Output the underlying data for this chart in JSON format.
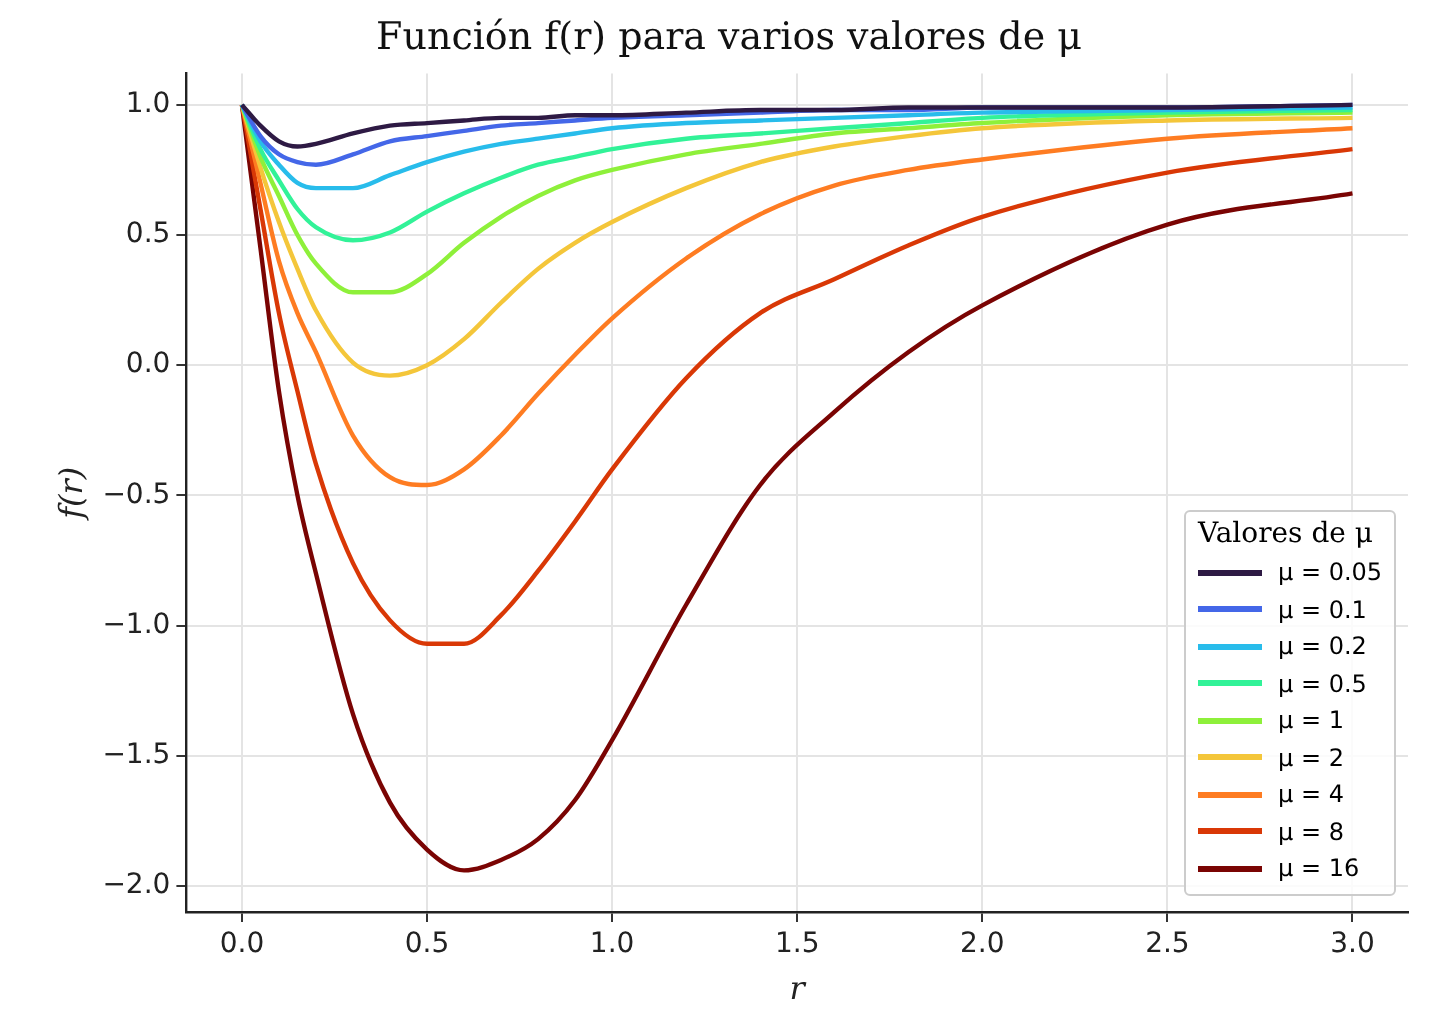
{
  "chart_data": {
    "type": "line",
    "title": "Función f(r) para varios valores de μ",
    "xlabel": "r",
    "ylabel": "f(r)",
    "legend_title": "Valores de μ",
    "x": [
      0,
      0.05,
      0.1,
      0.15,
      0.2,
      0.3,
      0.4,
      0.5,
      0.6,
      0.7,
      0.8,
      0.9,
      1.0,
      1.2,
      1.4,
      1.6,
      1.8,
      2.0,
      2.5,
      3.0
    ],
    "series": [
      {
        "name": "μ = 0.05",
        "color": "#2e1a44",
        "values": [
          1,
          0.92,
          0.86,
          0.84,
          0.85,
          0.89,
          0.92,
          0.93,
          0.94,
          0.95,
          0.95,
          0.96,
          0.96,
          0.97,
          0.98,
          0.98,
          0.99,
          0.99,
          0.99,
          1.0
        ]
      },
      {
        "name": "μ = 0.1",
        "color": "#4467e8",
        "values": [
          1,
          0.88,
          0.81,
          0.78,
          0.77,
          0.81,
          0.86,
          0.88,
          0.9,
          0.92,
          0.93,
          0.94,
          0.95,
          0.96,
          0.97,
          0.98,
          0.98,
          0.99,
          0.99,
          1.0
        ]
      },
      {
        "name": "μ = 0.2",
        "color": "#28bceb",
        "values": [
          1,
          0.86,
          0.77,
          0.7,
          0.68,
          0.68,
          0.73,
          0.78,
          0.82,
          0.85,
          0.87,
          0.89,
          0.91,
          0.93,
          0.94,
          0.95,
          0.96,
          0.97,
          0.98,
          0.99
        ]
      },
      {
        "name": "μ = 0.5",
        "color": "#32f298",
        "values": [
          1,
          0.83,
          0.71,
          0.6,
          0.53,
          0.48,
          0.51,
          0.59,
          0.66,
          0.72,
          0.77,
          0.8,
          0.83,
          0.87,
          0.89,
          0.91,
          0.93,
          0.95,
          0.97,
          0.98
        ]
      },
      {
        "name": "μ = 1",
        "color": "#8ef03a",
        "values": [
          1,
          0.8,
          0.65,
          0.5,
          0.39,
          0.28,
          0.28,
          0.35,
          0.47,
          0.57,
          0.65,
          0.71,
          0.75,
          0.81,
          0.85,
          0.89,
          0.91,
          0.93,
          0.96,
          0.97
        ]
      },
      {
        "name": "μ = 2",
        "color": "#f4c63a",
        "values": [
          1,
          0.76,
          0.55,
          0.37,
          0.21,
          0.01,
          -0.04,
          0.0,
          0.1,
          0.24,
          0.37,
          0.47,
          0.55,
          0.68,
          0.78,
          0.84,
          0.88,
          0.91,
          0.94,
          0.95
        ]
      },
      {
        "name": "μ = 4",
        "color": "#fe7c22",
        "values": [
          1,
          0.7,
          0.4,
          0.2,
          0.05,
          -0.27,
          -0.43,
          -0.46,
          -0.4,
          -0.27,
          -0.11,
          0.04,
          0.18,
          0.41,
          0.58,
          0.69,
          0.75,
          0.79,
          0.87,
          0.91
        ]
      },
      {
        "name": "μ = 8",
        "color": "#d93806",
        "values": [
          1,
          0.6,
          0.2,
          -0.1,
          -0.38,
          -0.76,
          -0.98,
          -1.07,
          -1.07,
          -0.96,
          -0.79,
          -0.6,
          -0.4,
          -0.05,
          0.2,
          0.33,
          0.46,
          0.57,
          0.74,
          0.83
        ]
      },
      {
        "name": "μ = 16",
        "color": "#7a0403",
        "values": [
          1,
          0.45,
          -0.1,
          -0.5,
          -0.8,
          -1.34,
          -1.68,
          -1.86,
          -1.94,
          -1.9,
          -1.82,
          -1.67,
          -1.44,
          -0.92,
          -0.46,
          -0.18,
          0.05,
          0.23,
          0.54,
          0.66
        ]
      }
    ],
    "xlim": [
      -0.15,
      3.15
    ],
    "ylim": [
      -2.1,
      1.12
    ],
    "xticks": [
      {
        "value": 0,
        "label": "0.0"
      },
      {
        "value": 0.5,
        "label": "0.5"
      },
      {
        "value": 1,
        "label": "1.0"
      },
      {
        "value": 1.5,
        "label": "1.5"
      },
      {
        "value": 2,
        "label": "2.0"
      },
      {
        "value": 2.5,
        "label": "2.5"
      },
      {
        "value": 3,
        "label": "3.0"
      }
    ],
    "yticks": [
      {
        "value": -2,
        "label": "−2.0"
      },
      {
        "value": -1.5,
        "label": "−1.5"
      },
      {
        "value": -1,
        "label": "−1.0"
      },
      {
        "value": -0.5,
        "label": "−0.5"
      },
      {
        "value": 0,
        "label": "0.0"
      },
      {
        "value": 0.5,
        "label": "0.5"
      },
      {
        "value": 1,
        "label": "1.0"
      }
    ],
    "grid": true,
    "legend": "bottom right",
    "marker": "none",
    "line_style": "solid"
  }
}
